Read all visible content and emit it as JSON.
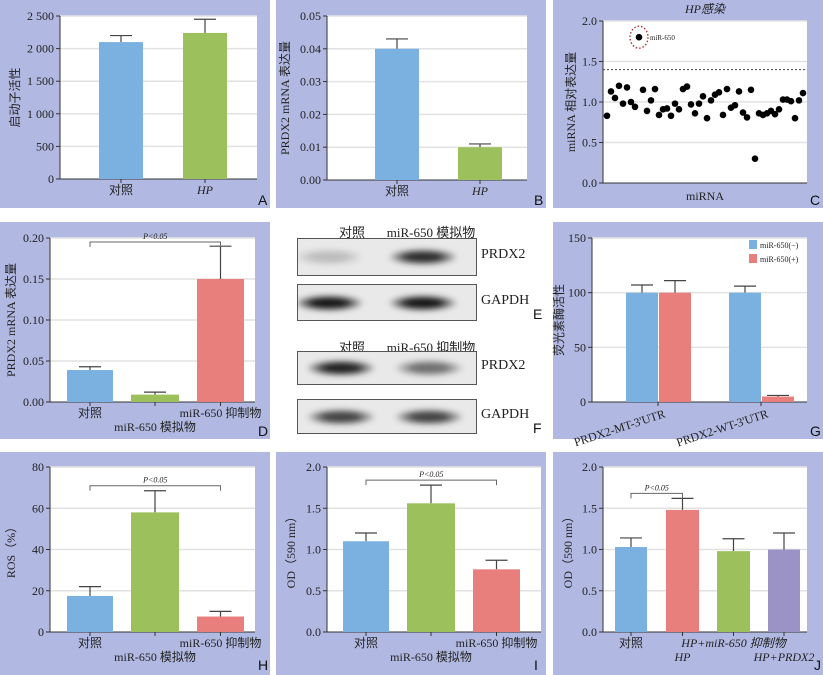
{
  "colors": {
    "background": "#b1b9e2",
    "blue": "#7ab1e0",
    "green": "#9cc05c",
    "red": "#e87f7d",
    "purple": "#9b92c6"
  },
  "chart_data": [
    {
      "id": "A",
      "type": "bar",
      "letter": "A",
      "ylabel": "启动子活性",
      "ylim": [
        0,
        2500
      ],
      "yticks": [
        0,
        500,
        1000,
        1500,
        2000,
        2500
      ],
      "ytick_labels": [
        "0",
        "500",
        "1 000",
        "1 500",
        "2 000",
        "2 500"
      ],
      "categories": [
        "对照",
        "HP"
      ],
      "values": [
        2100,
        2240
      ],
      "error_tops": [
        2200,
        2450
      ],
      "bar_colors": [
        "#7ab1e0",
        "#9cc05c"
      ],
      "grid": true
    },
    {
      "id": "B",
      "type": "bar",
      "letter": "B",
      "ylabel": "PRDX2 mRNA 表达量",
      "ylim": [
        0,
        0.05
      ],
      "yticks": [
        0,
        0.01,
        0.02,
        0.03,
        0.04,
        0.05
      ],
      "ytick_labels": [
        "0.00",
        "0.01",
        "0.02",
        "0.03",
        "0.04",
        "0.05"
      ],
      "categories": [
        "对照",
        "HP"
      ],
      "values": [
        0.04,
        0.01
      ],
      "error_tops": [
        0.043,
        0.011
      ],
      "bar_colors": [
        "#7ab1e0",
        "#9cc05c"
      ],
      "grid": true
    },
    {
      "id": "C",
      "type": "scatter",
      "letter": "C",
      "title": "HP感染",
      "xlabel": "miRNA",
      "ylabel": "miRNA 相对表达量",
      "ylim": [
        0,
        2
      ],
      "yticks": [
        0,
        0.5,
        1,
        1.5,
        2
      ],
      "ytick_labels": [
        "0.0",
        "0.5",
        "1.0",
        "1.5",
        "2.0"
      ],
      "threshold": 1.4,
      "highlight_index": 8,
      "highlight_label": "miR-650",
      "values": [
        0.83,
        1.13,
        1.05,
        1.2,
        0.98,
        1.18,
        1.0,
        0.94,
        1.8,
        1.15,
        0.89,
        1.02,
        1.16,
        0.84,
        0.91,
        0.92,
        0.83,
        0.98,
        0.91,
        1.16,
        1.19,
        0.97,
        0.86,
        0.98,
        1.07,
        0.8,
        1.02,
        1.09,
        1.12,
        0.84,
        1.16,
        0.93,
        0.96,
        1.13,
        0.87,
        0.81,
        1.15,
        0.3,
        0.86,
        0.84,
        0.86,
        0.89,
        0.85,
        0.91,
        1.03,
        1.03,
        1.01,
        0.8,
        1.02,
        1.11
      ],
      "grid": true
    },
    {
      "id": "D",
      "type": "bar",
      "letter": "D",
      "ylabel": "PRDX2 mRNA 表达量",
      "ylim": [
        0,
        0.2
      ],
      "yticks": [
        0,
        0.05,
        0.1,
        0.15,
        0.2
      ],
      "ytick_labels": [
        "0.00",
        "0.05",
        "0.10",
        "0.15",
        "0.20"
      ],
      "categories": [
        "对照",
        "miR-650 模拟物",
        "miR-650 抑制物"
      ],
      "values": [
        0.039,
        0.009,
        0.15
      ],
      "error_tops": [
        0.043,
        0.012,
        0.19
      ],
      "bar_colors": [
        "#7ab1e0",
        "#9cc05c",
        "#e87f7d"
      ],
      "significance": {
        "label": "P<0.05",
        "from": 0,
        "to": 2
      },
      "grid": true
    },
    {
      "id": "G",
      "type": "grouped_bar",
      "letter": "G",
      "ylabel": "荧光素酶活性",
      "ylim": [
        0,
        150
      ],
      "yticks": [
        0,
        50,
        100,
        150
      ],
      "ytick_labels": [
        "0",
        "50",
        "100",
        "150"
      ],
      "categories": [
        "PRDX2-MT-3'UTR",
        "PRDX2-WT-3'UTR"
      ],
      "series": [
        {
          "name": "miR-650(−)",
          "values": [
            100,
            100
          ],
          "error_tops": [
            107,
            106
          ],
          "color": "#7ab1e0"
        },
        {
          "name": "miR-650(+)",
          "values": [
            100,
            5
          ],
          "error_tops": [
            111,
            6
          ],
          "color": "#e87f7d"
        }
      ],
      "legend": "top-right",
      "grid": true
    },
    {
      "id": "H",
      "type": "bar",
      "letter": "H",
      "ylabel": "ROS（%）",
      "ylim": [
        0,
        80
      ],
      "yticks": [
        0,
        20,
        40,
        60,
        80
      ],
      "ytick_labels": [
        "0",
        "20",
        "40",
        "60",
        "80"
      ],
      "categories": [
        "对照",
        "miR-650 模拟物",
        "miR-650 抑制物"
      ],
      "values": [
        17.5,
        58,
        7.5
      ],
      "error_tops": [
        22,
        68.5,
        10
      ],
      "bar_colors": [
        "#7ab1e0",
        "#9cc05c",
        "#e87f7d"
      ],
      "significance": {
        "label": "P<0.05",
        "from": 0,
        "to": 2
      },
      "grid": true
    },
    {
      "id": "I",
      "type": "bar",
      "letter": "I",
      "ylabel": "OD（590 nm）",
      "ylim": [
        0,
        2
      ],
      "yticks": [
        0,
        0.5,
        1,
        1.5,
        2
      ],
      "ytick_labels": [
        "0.0",
        "0.5",
        "1.0",
        "1.5",
        "2.0"
      ],
      "categories": [
        "对照",
        "miR-650 模拟物",
        "miR-650 抑制物"
      ],
      "values": [
        1.1,
        1.56,
        0.76
      ],
      "error_tops": [
        1.2,
        1.78,
        0.87
      ],
      "bar_colors": [
        "#7ab1e0",
        "#9cc05c",
        "#e87f7d"
      ],
      "significance": {
        "label": "P<0.05",
        "from": 0,
        "to": 2
      },
      "grid": true
    },
    {
      "id": "J",
      "type": "bar",
      "letter": "J",
      "ylabel": "OD（590 nm）",
      "ylim": [
        0,
        2
      ],
      "yticks": [
        0,
        0.5,
        1,
        1.5,
        2
      ],
      "ytick_labels": [
        "0.0",
        "0.5",
        "1.0",
        "1.5",
        "2.0"
      ],
      "categories": [
        "对照",
        "HP",
        "HP+miR-650 抑制物",
        "HP+PRDX2"
      ],
      "values": [
        1.03,
        1.48,
        0.98,
        1.0
      ],
      "error_tops": [
        1.14,
        1.62,
        1.13,
        1.2
      ],
      "bar_colors": [
        "#7ab1e0",
        "#e87f7d",
        "#9cc05c",
        "#9b92c6"
      ],
      "significance": {
        "label": "P<0.05",
        "from": 0,
        "to": 1
      },
      "grid": true
    }
  ],
  "blots": [
    {
      "letter": "E",
      "lanes": [
        "对照",
        "miR-650 模拟物"
      ],
      "rows": [
        {
          "protein": "PRDX2",
          "intensity": [
            0.2,
            0.85
          ]
        },
        {
          "protein": "GAPDH",
          "intensity": [
            0.95,
            0.95
          ]
        }
      ]
    },
    {
      "letter": "F",
      "lanes": [
        "对照",
        "miR-650 抑制物"
      ],
      "rows": [
        {
          "protein": "PRDX2",
          "intensity": [
            0.9,
            0.55
          ]
        },
        {
          "protein": "GAPDH",
          "intensity": [
            0.75,
            0.75
          ]
        }
      ]
    }
  ]
}
